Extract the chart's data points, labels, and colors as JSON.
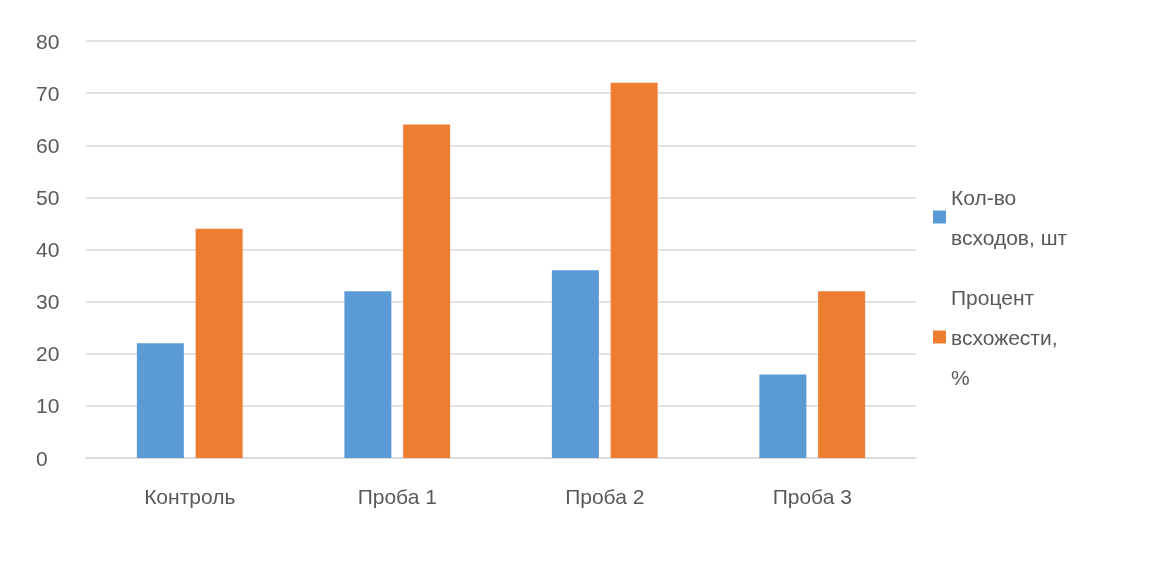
{
  "chart_data": {
    "type": "bar",
    "categories": [
      "Контроль",
      "Проба 1",
      "Проба 2",
      "Проба 3"
    ],
    "series": [
      {
        "name": "Кол-во всходов, шт",
        "color": "#5b9bd5",
        "values": [
          22,
          32,
          36,
          16
        ]
      },
      {
        "name": "Процент всхожести, %",
        "color": "#ed7d31",
        "values": [
          44,
          64,
          72,
          32
        ]
      }
    ],
    "ylim": [
      0,
      80
    ],
    "yticks": [
      0,
      10,
      20,
      30,
      40,
      50,
      60,
      70,
      80
    ],
    "grid": "y",
    "legend": "right"
  }
}
